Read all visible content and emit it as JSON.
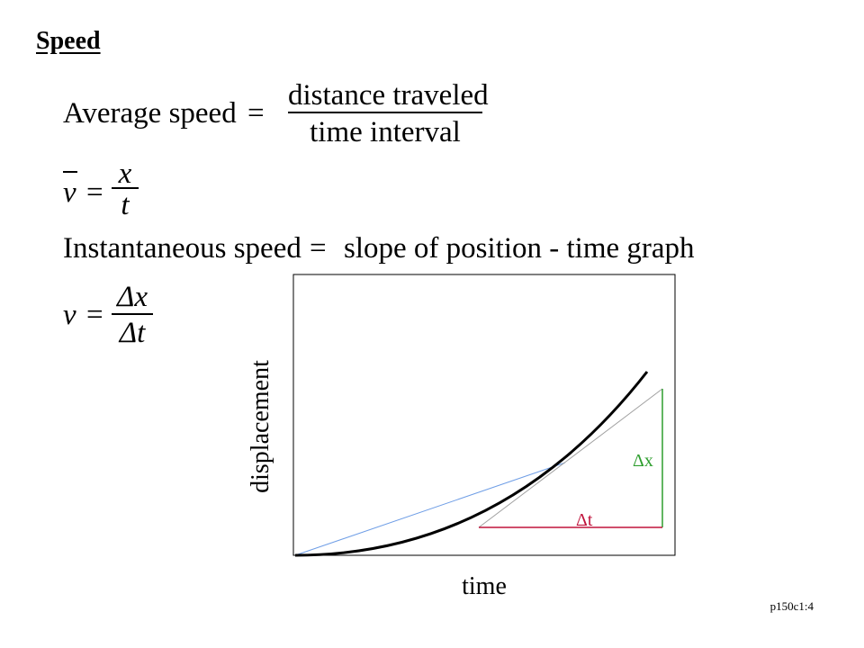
{
  "slide": {
    "title": "Speed",
    "footer": "p150c1:4"
  },
  "equations": {
    "average": {
      "lhs": "Average speed",
      "op": "=",
      "numerator": "distance traveled",
      "denominator": "time interval"
    },
    "average_symbolic": {
      "lhs": "v",
      "op": "=",
      "numerator": "x",
      "denominator": "t"
    },
    "instantaneous": {
      "lhs": "Instantaneous speed",
      "op": "=",
      "rhs": "slope of position - time graph"
    },
    "instantaneous_symbolic": {
      "lhs": "v",
      "op": "=",
      "numerator": "Δx",
      "denominator": "Δt"
    }
  },
  "graph": {
    "xlabel": "time",
    "ylabel": "displacement",
    "delta_x_label": "Δx",
    "delta_t_label": "Δt",
    "colors": {
      "curve": "#000000",
      "secant": "#6f9ee6",
      "tangent": "#a0a0a0",
      "delta_x": "#2e9e2e",
      "delta_t": "#c0143c",
      "frame": "#000000"
    }
  }
}
